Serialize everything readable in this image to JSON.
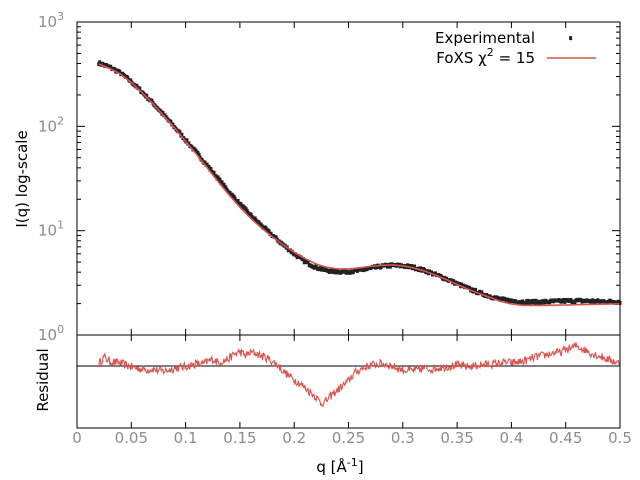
{
  "chart_data": [
    {
      "type": "scatter",
      "panel": "main",
      "xlabel": "q [Å",
      "xlabel_sup": "-1",
      "xlabel_tail": "]",
      "ylabel": "I(q) log-scale",
      "yscale": "log",
      "xlim": [
        0,
        0.5
      ],
      "ylim": [
        1,
        1000
      ],
      "x_ticks": [
        "0",
        "0.05",
        "0.1",
        "0.15",
        "0.2",
        "0.25",
        "0.3",
        "0.35",
        "0.4",
        "0.45",
        "0.5"
      ],
      "y_ticks": [
        {
          "base": "10",
          "exp": "0",
          "value": 1
        },
        {
          "base": "10",
          "exp": "1",
          "value": 10
        },
        {
          "base": "10",
          "exp": "2",
          "value": 100
        },
        {
          "base": "10",
          "exp": "3",
          "value": 1000
        }
      ],
      "legend_position": "top-right",
      "series": [
        {
          "name": "Experimental",
          "style": "points",
          "color": "#222222",
          "x": [
            0.02,
            0.03,
            0.04,
            0.05,
            0.06,
            0.07,
            0.08,
            0.09,
            0.1,
            0.11,
            0.12,
            0.13,
            0.14,
            0.15,
            0.16,
            0.17,
            0.18,
            0.19,
            0.2,
            0.21,
            0.22,
            0.23,
            0.24,
            0.25,
            0.26,
            0.27,
            0.28,
            0.29,
            0.3,
            0.31,
            0.32,
            0.33,
            0.34,
            0.35,
            0.36,
            0.37,
            0.38,
            0.39,
            0.4,
            0.41,
            0.42,
            0.43,
            0.44,
            0.45,
            0.46,
            0.47,
            0.48,
            0.49,
            0.5
          ],
          "y": [
            405,
            370,
            325,
            268,
            213,
            167,
            128,
            98,
            74,
            56,
            42,
            31.5,
            23.5,
            18.0,
            14.0,
            11.2,
            9.0,
            7.3,
            6.0,
            5.05,
            4.45,
            4.15,
            4.05,
            4.05,
            4.15,
            4.35,
            4.55,
            4.65,
            4.6,
            4.45,
            4.15,
            3.8,
            3.45,
            3.1,
            2.8,
            2.55,
            2.35,
            2.2,
            2.12,
            2.08,
            2.07,
            2.08,
            2.1,
            2.12,
            2.13,
            2.12,
            2.1,
            2.09,
            2.08
          ]
        },
        {
          "name": "FoXS χ",
          "name_sup": "2",
          "name_tail": " = 15",
          "style": "line",
          "color": "#d9534f",
          "x": [
            0.02,
            0.03,
            0.04,
            0.05,
            0.06,
            0.07,
            0.08,
            0.09,
            0.1,
            0.11,
            0.12,
            0.13,
            0.14,
            0.15,
            0.16,
            0.17,
            0.18,
            0.19,
            0.2,
            0.21,
            0.22,
            0.23,
            0.24,
            0.25,
            0.26,
            0.27,
            0.28,
            0.29,
            0.3,
            0.31,
            0.32,
            0.33,
            0.34,
            0.35,
            0.36,
            0.37,
            0.38,
            0.39,
            0.4,
            0.41,
            0.42,
            0.43,
            0.44,
            0.45,
            0.46,
            0.47,
            0.48,
            0.49,
            0.5
          ],
          "y": [
            395,
            360,
            318,
            263,
            210,
            165,
            126,
            96,
            72,
            54,
            40,
            29.5,
            22.0,
            16.8,
            13.1,
            10.6,
            8.7,
            7.3,
            6.2,
            5.4,
            4.8,
            4.45,
            4.3,
            4.3,
            4.4,
            4.55,
            4.65,
            4.7,
            4.6,
            4.4,
            4.1,
            3.75,
            3.4,
            3.05,
            2.75,
            2.5,
            2.3,
            2.1,
            1.98,
            1.93,
            1.92,
            1.92,
            1.93,
            1.94,
            1.95,
            1.96,
            1.97,
            1.98,
            1.99
          ]
        }
      ]
    },
    {
      "type": "line",
      "panel": "residual",
      "ylabel": "Residual",
      "xlim": [
        0,
        0.5
      ],
      "zero_line": true,
      "series": [
        {
          "style": "line",
          "color": "#d9534f",
          "x": [
            0.02,
            0.025,
            0.03,
            0.035,
            0.04,
            0.045,
            0.05,
            0.055,
            0.06,
            0.065,
            0.07,
            0.075,
            0.08,
            0.085,
            0.09,
            0.095,
            0.1,
            0.105,
            0.11,
            0.115,
            0.12,
            0.125,
            0.13,
            0.135,
            0.14,
            0.145,
            0.15,
            0.155,
            0.16,
            0.165,
            0.17,
            0.175,
            0.18,
            0.185,
            0.19,
            0.195,
            0.2,
            0.205,
            0.21,
            0.215,
            0.22,
            0.225,
            0.23,
            0.235,
            0.24,
            0.245,
            0.25,
            0.255,
            0.26,
            0.265,
            0.27,
            0.275,
            0.28,
            0.285,
            0.29,
            0.295,
            0.3,
            0.305,
            0.31,
            0.315,
            0.32,
            0.325,
            0.33,
            0.335,
            0.34,
            0.345,
            0.35,
            0.355,
            0.36,
            0.365,
            0.37,
            0.375,
            0.38,
            0.385,
            0.39,
            0.395,
            0.4,
            0.405,
            0.41,
            0.415,
            0.42,
            0.425,
            0.43,
            0.435,
            0.44,
            0.445,
            0.45,
            0.455,
            0.46,
            0.465,
            0.47,
            0.475,
            0.48,
            0.485,
            0.49,
            0.495,
            0.5
          ],
          "y": [
            0.3,
            1.2,
            0.6,
            0.5,
            0.4,
            0.1,
            -0.1,
            -0.3,
            -0.4,
            -0.5,
            -0.4,
            -0.6,
            -0.7,
            -0.5,
            -0.3,
            -0.2,
            -0.1,
            0.1,
            0.3,
            0.2,
            0.6,
            0.9,
            0.5,
            0.7,
            1.0,
            1.6,
            1.9,
            1.4,
            1.8,
            1.7,
            1.3,
            1.1,
            0.6,
            0.1,
            -0.7,
            -1.3,
            -1.8,
            -2.3,
            -2.9,
            -3.5,
            -4.1,
            -5.0,
            -4.6,
            -3.8,
            -3.2,
            -2.6,
            -2.0,
            -1.0,
            -0.5,
            -0.2,
            0.1,
            0.2,
            0.3,
            0.2,
            0.0,
            -0.3,
            -0.5,
            -0.6,
            -0.6,
            -0.5,
            -0.3,
            -0.4,
            -0.3,
            -0.2,
            -0.1,
            0.0,
            0.1,
            0.0,
            -0.1,
            0.0,
            0.1,
            0.2,
            0.2,
            0.3,
            0.4,
            0.5,
            0.4,
            0.5,
            0.6,
            0.8,
            1.1,
            1.3,
            1.4,
            1.6,
            1.8,
            1.8,
            2.2,
            2.4,
            2.7,
            2.3,
            2.0,
            1.6,
            1.4,
            1.1,
            0.8,
            0.6,
            0.3
          ]
        }
      ]
    }
  ]
}
